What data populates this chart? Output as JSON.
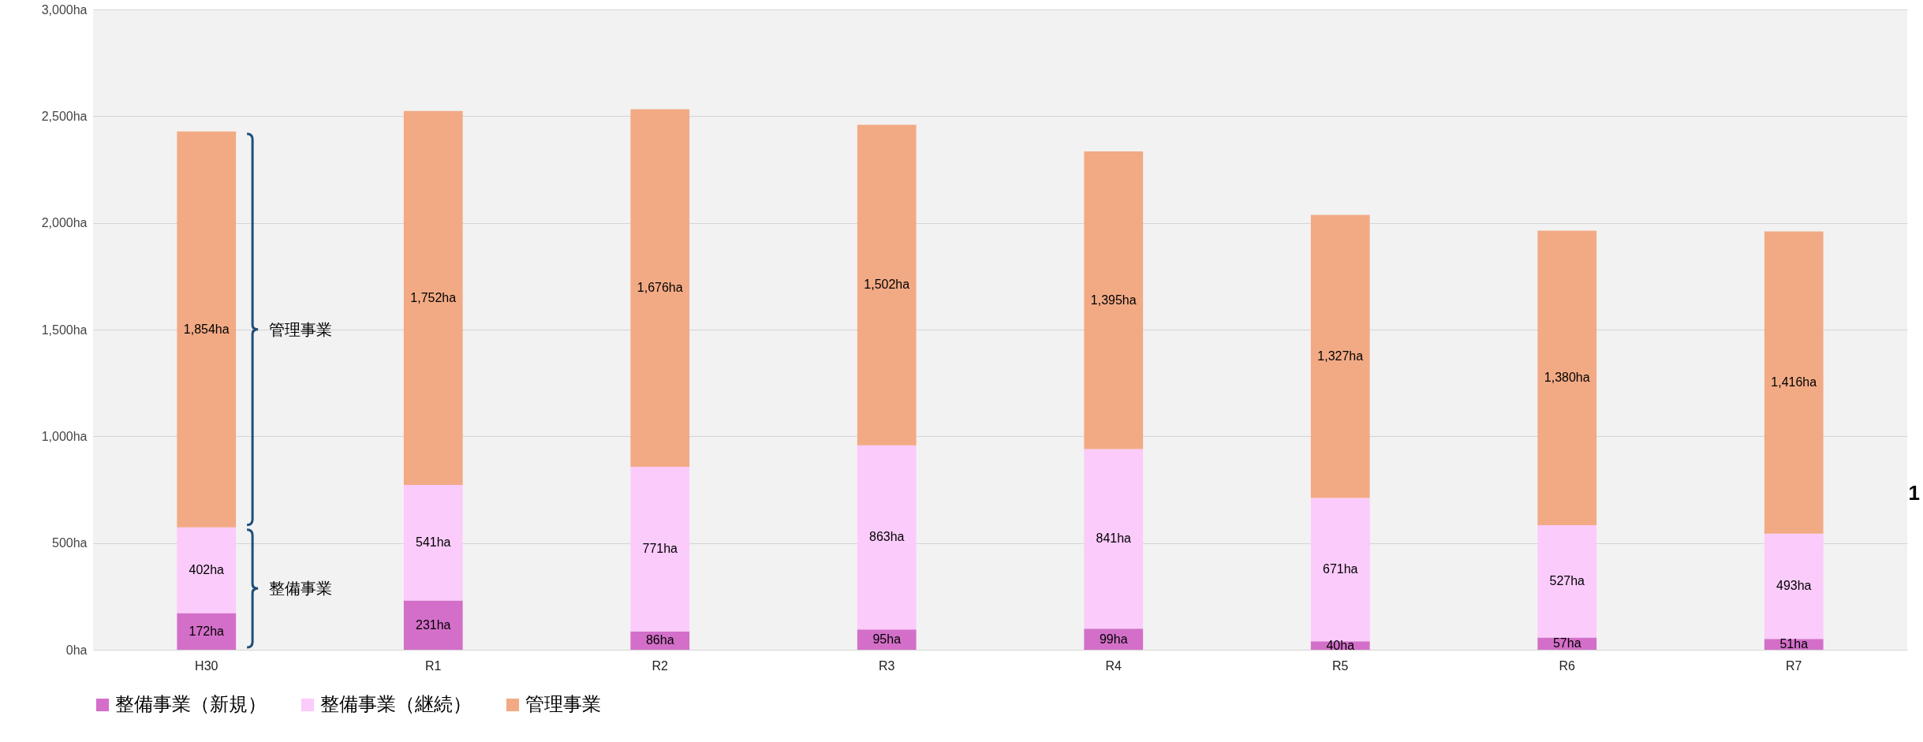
{
  "chart_data": {
    "type": "bar",
    "stacked": true,
    "categories": [
      "H30",
      "R1",
      "R2",
      "R3",
      "R4",
      "R5",
      "R6",
      "R7"
    ],
    "series": [
      {
        "name": "整備事業（新規）",
        "color": "#d36fc9",
        "values": [
          172,
          231,
          86,
          95,
          99,
          40,
          57,
          51
        ],
        "value_labels": [
          "172ha",
          "231ha",
          "86ha",
          "95ha",
          "99ha",
          "40ha",
          "57ha",
          "51ha"
        ]
      },
      {
        "name": "整備事業（継続）",
        "color": "#fbcbfb",
        "values": [
          402,
          541,
          771,
          863,
          841,
          671,
          527,
          493
        ],
        "value_labels": [
          "402ha",
          "541ha",
          "771ha",
          "863ha",
          "841ha",
          "671ha",
          "527ha",
          "493ha"
        ]
      },
      {
        "name": "管理事業",
        "color": "#f2aa85",
        "values": [
          1854,
          1752,
          1676,
          1502,
          1395,
          1327,
          1380,
          1416
        ],
        "value_labels": [
          "1,854ha",
          "1,752ha",
          "1,676ha",
          "1,502ha",
          "1,395ha",
          "1,327ha",
          "1,380ha",
          "1,416ha"
        ]
      }
    ],
    "ylim": [
      0,
      3000
    ],
    "yticks": [
      {
        "value": 0,
        "label": "0ha"
      },
      {
        "value": 500,
        "label": "500ha"
      },
      {
        "value": 1000,
        "label": "1,000ha"
      },
      {
        "value": 1500,
        "label": "1,500ha"
      },
      {
        "value": 2000,
        "label": "2,000ha"
      },
      {
        "value": 2500,
        "label": "2,500ha"
      },
      {
        "value": 3000,
        "label": "3,000ha"
      }
    ],
    "grid": "y",
    "legend": "bottom",
    "annotations": [
      "管理事業",
      "整備事業",
      "1"
    ]
  }
}
